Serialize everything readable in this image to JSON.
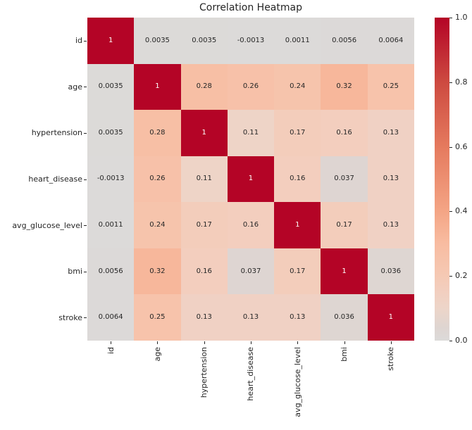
{
  "title": "Correlation Heatmap",
  "chart_data": {
    "type": "heatmap",
    "title": "Correlation Heatmap",
    "categories": [
      "id",
      "age",
      "hypertension",
      "heart_disease",
      "avg_glucose_level",
      "bmi",
      "stroke"
    ],
    "matrix": [
      [
        1,
        0.0035,
        0.0035,
        -0.0013,
        0.0011,
        0.0056,
        0.0064
      ],
      [
        0.0035,
        1,
        0.28,
        0.26,
        0.24,
        0.32,
        0.25
      ],
      [
        0.0035,
        0.28,
        1,
        0.11,
        0.17,
        0.16,
        0.13
      ],
      [
        -0.0013,
        0.26,
        0.11,
        1,
        0.16,
        0.037,
        0.13
      ],
      [
        0.0011,
        0.24,
        0.17,
        0.16,
        1,
        0.17,
        0.13
      ],
      [
        0.0056,
        0.32,
        0.16,
        0.037,
        0.17,
        1,
        0.036
      ],
      [
        0.0064,
        0.25,
        0.13,
        0.13,
        0.13,
        0.036,
        1
      ]
    ],
    "vmin": 0,
    "vmax": 1,
    "colorbar_ticks": [
      "0.0",
      "0.2",
      "0.4",
      "0.6",
      "0.8",
      "1.0"
    ],
    "legend_position": "right",
    "grid": false,
    "colors": {
      "max": "#b40426",
      "min": "#dcdad9",
      "annotation_dark": "#262626",
      "annotation_light": "#ffffff",
      "gradient_stops": [
        [
          0.0,
          "#dcdad9"
        ],
        [
          0.04,
          "#ded5d1"
        ],
        [
          0.1,
          "#edd5c9"
        ],
        [
          0.15,
          "#f2cfc0"
        ],
        [
          0.2,
          "#f5c9b4"
        ],
        [
          0.3,
          "#f8bca1"
        ],
        [
          0.4,
          "#f4a585"
        ],
        [
          0.6,
          "#e57a5e"
        ],
        [
          0.8,
          "#cd4a40"
        ],
        [
          1.0,
          "#b40426"
        ]
      ]
    }
  }
}
